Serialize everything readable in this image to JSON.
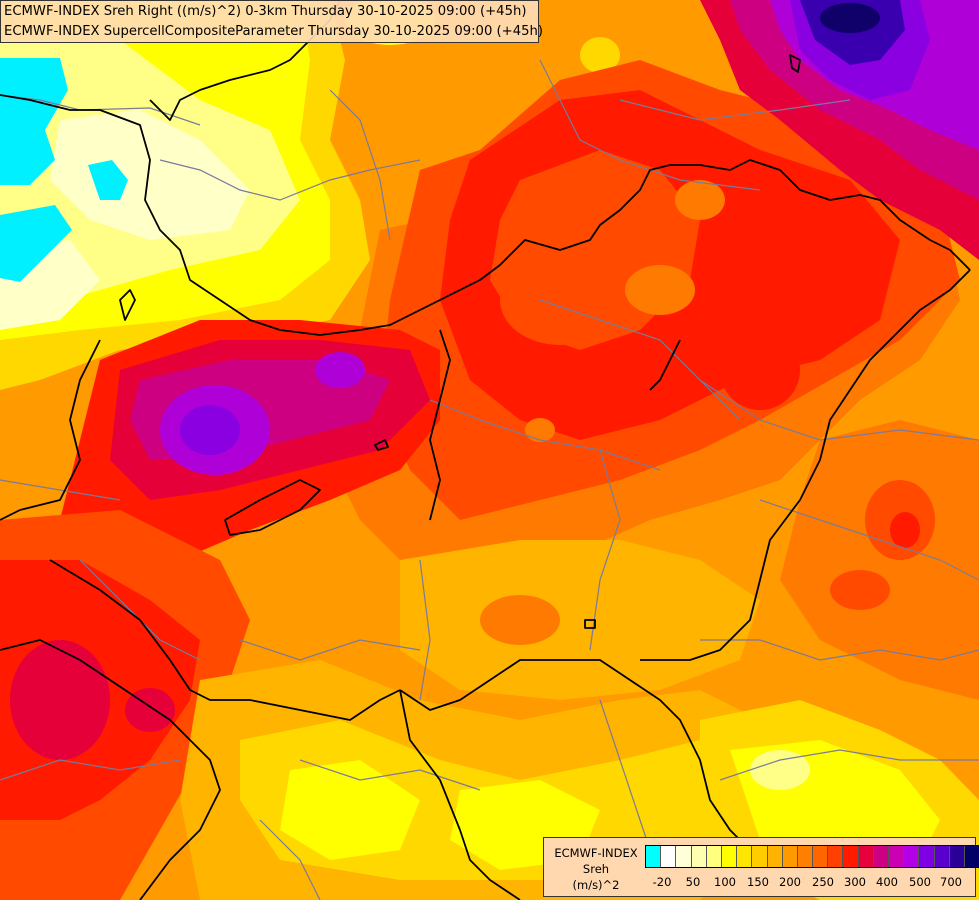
{
  "title_lines": [
    "ECMWF-INDEX Sreh Right ((m/s)^2) 0-3km Thursday 30-10-2025 09:00 (+45h)",
    "ECMWF-INDEX SupercellCompositeParameter Thursday 30-10-2025 09:00 (+45h)"
  ],
  "legend": {
    "source": "ECMWF-INDEX",
    "variable": "Sreh",
    "unit": "(m/s)^2",
    "colors": [
      "#00ffff",
      "#ffffff",
      "#ffffd8",
      "#ffffb0",
      "#ffff80",
      "#ffff00",
      "#ffe600",
      "#ffcc00",
      "#ffb300",
      "#ff9900",
      "#ff8000",
      "#ff6600",
      "#ff4000",
      "#ff1a00",
      "#e6003c",
      "#cc0080",
      "#cc00b3",
      "#b300e6",
      "#8000e6",
      "#5a00cc",
      "#2a0099",
      "#000066"
    ],
    "tick_labels": [
      "-20",
      "50",
      "100",
      "150",
      "200",
      "250",
      "300",
      "400",
      "500",
      "700"
    ]
  },
  "field_colors": {
    "background": "#ff9a00",
    "cyan": "#00f0ff",
    "pale": "#ffffc8",
    "light_yellow": "#ffff88",
    "yellow": "#ffff00",
    "yellow_orange": "#ffd800",
    "orange": "#ffb400",
    "dark_orange": "#ff7a00",
    "red_orange": "#ff4a00",
    "red": "#ff1a00",
    "crimson": "#e6003a",
    "magenta": "#cc0080",
    "purple": "#b000d8",
    "violet": "#8a00e0",
    "indigo": "#3a00b0",
    "navy": "#10006a",
    "border_line": "#000000",
    "admin_line": "#7a7a9a"
  }
}
